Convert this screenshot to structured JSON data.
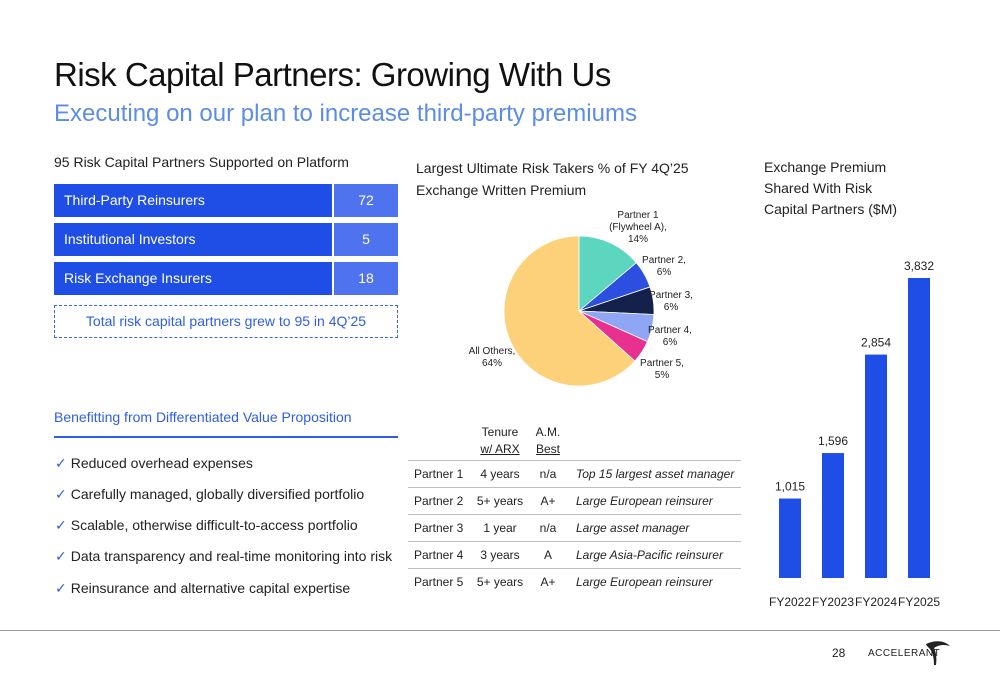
{
  "header": {
    "title": "Risk Capital Partners: Growing With Us",
    "subtitle": "Executing on our plan to increase third-party premiums"
  },
  "partners_panel": {
    "heading": "95 Risk Capital Partners Supported on Platform",
    "rows": [
      {
        "label": "Third-Party Reinsurers",
        "value": "72"
      },
      {
        "label": "Institutional Investors",
        "value": "5"
      },
      {
        "label": "Risk Exchange Insurers",
        "value": "18"
      }
    ],
    "total_note": "Total risk capital partners grew to 95 in 4Q’25"
  },
  "benefits": {
    "heading": "Benefitting from Differentiated Value Proposition",
    "check_glyph": "✓",
    "items": [
      "Reduced overhead expenses",
      "Carefully managed, globally diversified portfolio",
      "Scalable, otherwise difficult-to-access portfolio",
      "Data transparency and real-time monitoring into risk",
      "Reinsurance and alternative capital expertise"
    ]
  },
  "ultimate_risk_takers": {
    "heading_line1": "Largest Ultimate Risk Takers % of FY 4Q’25",
    "heading_line2": "Exchange Written Premium"
  },
  "partner_table": {
    "headers": {
      "tenure_line1": "Tenure",
      "tenure_line2": "w/ ARX",
      "am_line1": "A.M.",
      "am_line2": "Best"
    },
    "rows": [
      {
        "name": "Partner 1",
        "tenure": "4 years",
        "am_best": "n/a",
        "description": "Top 15 largest asset manager"
      },
      {
        "name": "Partner 2",
        "tenure": "5+ years",
        "am_best": "A+",
        "description": "Large European reinsurer"
      },
      {
        "name": "Partner 3",
        "tenure": "1 year",
        "am_best": "n/a",
        "description": "Large asset manager"
      },
      {
        "name": "Partner 4",
        "tenure": "3 years",
        "am_best": "A",
        "description": "Large Asia-Pacific reinsurer"
      },
      {
        "name": "Partner 5",
        "tenure": "5+ years",
        "am_best": "A+",
        "description": "Large European reinsurer"
      }
    ]
  },
  "exchange_premium": {
    "heading_line1": "Exchange Premium",
    "heading_line2": "Shared With Risk",
    "heading_line3": "Capital Partners ($M)"
  },
  "chart_data": [
    {
      "type": "pie",
      "title": "Largest Ultimate Risk Takers % of FY 4Q’25 Exchange Written Premium",
      "slices": [
        {
          "label_lines": [
            "Partner 1",
            "(Flywheel A),",
            "14%"
          ],
          "value": 14,
          "color": "#5dd6c0"
        },
        {
          "label_lines": [
            "Partner 2,",
            "6%"
          ],
          "value": 6,
          "color": "#2c4fe0"
        },
        {
          "label_lines": [
            "Partner 3,",
            "6%"
          ],
          "value": 6,
          "color": "#14214a"
        },
        {
          "label_lines": [
            "Partner 4,",
            "6%"
          ],
          "value": 6,
          "color": "#8ea6f4"
        },
        {
          "label_lines": [
            "Partner 5,",
            "5%"
          ],
          "value": 5,
          "color": "#e8318f"
        },
        {
          "label_lines": [
            "All Others,",
            "64%"
          ],
          "value": 64,
          "color": "#fdd07a"
        }
      ]
    },
    {
      "type": "bar",
      "title": "Exchange Premium Shared With Risk Capital Partners ($M)",
      "categories": [
        "FY2022",
        "FY2023",
        "FY2024",
        "FY2025"
      ],
      "values": [
        1015,
        1596,
        2854,
        3832
      ],
      "value_labels": [
        "1,015",
        "1,596",
        "2,854",
        "3,832"
      ],
      "color": "#1f4ee6",
      "ylim": [
        0,
        3832
      ]
    }
  ],
  "footer": {
    "page_number": "28",
    "logo_text": "ACCELERANT"
  }
}
